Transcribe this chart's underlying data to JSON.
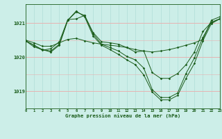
{
  "xlabel": "Graphe pression niveau de la mer (hPa)",
  "background_color": "#cceee8",
  "line_color": "#1a5c1a",
  "grid_color_v": "#b0ddd8",
  "grid_color_h": "#e8b0b0",
  "text_color": "#1a5c1a",
  "xlim": [
    0,
    23
  ],
  "ylim": [
    1018.5,
    1021.55
  ],
  "yticks": [
    1019,
    1020,
    1021
  ],
  "xticks": [
    0,
    1,
    2,
    3,
    4,
    5,
    6,
    7,
    8,
    9,
    10,
    11,
    12,
    13,
    14,
    15,
    16,
    17,
    18,
    19,
    20,
    21,
    22,
    23
  ],
  "line1": [
    1020.5,
    1020.42,
    1020.32,
    1020.32,
    1020.42,
    1020.52,
    1020.55,
    1020.48,
    1020.42,
    1020.38,
    1020.35,
    1020.32,
    1020.28,
    1020.22,
    1020.18,
    1020.15,
    1020.18,
    1020.22,
    1020.28,
    1020.35,
    1020.42,
    1020.52,
    1021.08,
    1021.18
  ],
  "line2": [
    1020.48,
    1020.35,
    1020.2,
    1020.25,
    1020.45,
    1021.1,
    1021.12,
    1021.22,
    1020.72,
    1020.45,
    1020.42,
    1020.38,
    1020.28,
    1020.15,
    1020.18,
    1019.55,
    1019.38,
    1019.38,
    1019.52,
    1019.78,
    1020.15,
    1020.75,
    1021.02,
    1021.12
  ],
  "line3": [
    1020.48,
    1020.35,
    1020.22,
    1020.18,
    1020.38,
    1021.08,
    1021.32,
    1021.22,
    1020.68,
    1020.38,
    1020.28,
    1020.18,
    1020.02,
    1019.92,
    1019.68,
    1019.05,
    1018.82,
    1018.82,
    1018.95,
    1019.52,
    1019.98,
    1020.58,
    1021.02,
    1021.12
  ],
  "line4": [
    1020.48,
    1020.3,
    1020.22,
    1020.15,
    1020.35,
    1021.08,
    1021.35,
    1021.18,
    1020.62,
    1020.35,
    1020.22,
    1020.08,
    1019.92,
    1019.78,
    1019.48,
    1018.98,
    1018.75,
    1018.75,
    1018.88,
    1019.38,
    1019.82,
    1020.48,
    1020.98,
    1021.12
  ]
}
